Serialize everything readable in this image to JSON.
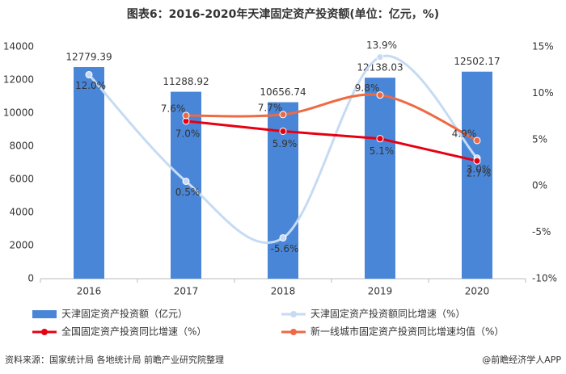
{
  "chart_data": {
    "type": "bar_line",
    "title": "图表6：2016-2020年天津固定资产投资额(单位：亿元，%)",
    "categories": [
      "2016",
      "2017",
      "2018",
      "2019",
      "2020"
    ],
    "ylim": [
      0,
      14000
    ],
    "yticks": [
      0,
      2000,
      4000,
      6000,
      8000,
      10000,
      12000,
      14000
    ],
    "y2lim": [
      -10,
      15
    ],
    "y2ticks": [
      {
        "value": -10,
        "label": "-10%"
      },
      {
        "value": -5,
        "label": "-5%"
      },
      {
        "value": 0,
        "label": "0%"
      },
      {
        "value": 5,
        "label": "5%"
      },
      {
        "value": 10,
        "label": "10%"
      },
      {
        "value": 15,
        "label": "15%"
      }
    ],
    "series": [
      {
        "name": "天津固定资产投资额（亿元）",
        "type": "bar",
        "color": "#4a86d8",
        "values": [
          12779.39,
          11288.92,
          10656.74,
          12138.03,
          12502.17
        ]
      },
      {
        "name": "天津固定资产投资额同比增速（%）",
        "type": "line",
        "axis": "y2",
        "smooth": true,
        "color": "#c6dbf3",
        "values": [
          12.0,
          0.5,
          -5.6,
          13.9,
          3.0
        ],
        "value_labels": [
          "12.0%",
          "0.5%",
          "-5.6%",
          "13.9%",
          "3.0%"
        ]
      },
      {
        "name": "全国固定资产投资同比增速（%）",
        "type": "line",
        "axis": "y2",
        "color": "#e60012",
        "values": [
          null,
          7.0,
          5.9,
          5.1,
          2.7
        ],
        "value_labels": [
          null,
          "7.0%",
          "5.9%",
          "5.1%",
          "2.7%"
        ]
      },
      {
        "name": "新一线城市固定资产投资同比增速均值（%）",
        "type": "line",
        "axis": "y2",
        "smooth": true,
        "color": "#ee6a45",
        "values": [
          null,
          7.6,
          7.7,
          9.8,
          4.9
        ],
        "value_labels": [
          null,
          "7.6%",
          "7.7%",
          "9.8%",
          "4.9%"
        ]
      }
    ],
    "source": "资料来源：国家统计局 各地统计局 前瞻产业研究院整理",
    "credit": "@前瞻经济学人APP"
  }
}
